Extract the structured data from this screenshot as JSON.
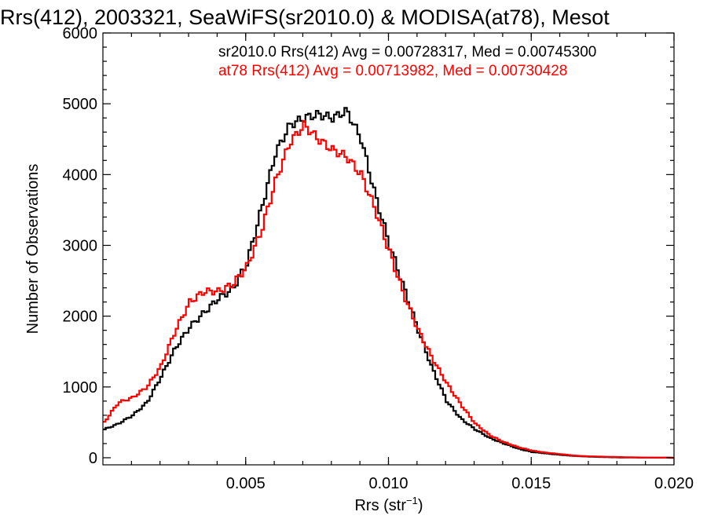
{
  "chart_data": {
    "type": "line",
    "title": "Rrs(412), 2003321, SeaWiFS(sr2010.0) & MODISA(at78), Mesot",
    "xlabel": "Rrs (str",
    "xlabel_sup": "−1",
    "xlabel_close": ")",
    "ylabel": "Number of Observations",
    "xlim": [
      0.0,
      0.02
    ],
    "ylim": [
      -100,
      6000
    ],
    "xticks": [
      0.005,
      0.01,
      0.015,
      0.02
    ],
    "xtick_labels": [
      "0.005",
      "0.010",
      "0.015",
      "0.020"
    ],
    "yticks": [
      0,
      1000,
      2000,
      3000,
      4000,
      5000,
      6000
    ],
    "ytick_labels": [
      "0",
      "1000",
      "2000",
      "3000",
      "4000",
      "5000",
      "6000"
    ],
    "series": [
      {
        "name": "sr2010.0",
        "legend": "sr2010.0 Rrs(412) Avg = 0.00728317, Med = 0.00745300",
        "color": "#000000",
        "x": [
          0.0,
          0.0005,
          0.001,
          0.0015,
          0.002,
          0.0025,
          0.003,
          0.0035,
          0.004,
          0.0045,
          0.005,
          0.0055,
          0.006,
          0.0065,
          0.007,
          0.0075,
          0.008,
          0.0085,
          0.009,
          0.0095,
          0.01,
          0.0105,
          0.011,
          0.0115,
          0.012,
          0.0125,
          0.013,
          0.0135,
          0.014,
          0.0145,
          0.015,
          0.0155,
          0.016,
          0.0165,
          0.017,
          0.0175,
          0.018,
          0.0185,
          0.019,
          0.0195,
          0.02
        ],
        "y": [
          400,
          480,
          600,
          780,
          1150,
          1550,
          1850,
          2050,
          2250,
          2380,
          2750,
          3500,
          4300,
          4700,
          4800,
          4850,
          4800,
          4900,
          4500,
          3700,
          3000,
          2400,
          1800,
          1250,
          800,
          550,
          400,
          280,
          200,
          130,
          80,
          60,
          40,
          25,
          15,
          10,
          5,
          3,
          2,
          1,
          0
        ]
      },
      {
        "name": "at78",
        "legend": "at78 Rrs(412) Avg = 0.00713982, Med = 0.00730428",
        "color": "#ff0000",
        "x": [
          0.0,
          0.0005,
          0.001,
          0.0015,
          0.002,
          0.0025,
          0.003,
          0.0035,
          0.004,
          0.0045,
          0.005,
          0.0055,
          0.006,
          0.0065,
          0.007,
          0.0075,
          0.008,
          0.0085,
          0.009,
          0.0095,
          0.01,
          0.0105,
          0.011,
          0.0115,
          0.012,
          0.0125,
          0.013,
          0.0135,
          0.014,
          0.0145,
          0.015,
          0.0155,
          0.016,
          0.0165,
          0.017,
          0.0175,
          0.018,
          0.0185,
          0.019,
          0.0195,
          0.02
        ],
        "y": [
          500,
          780,
          850,
          1000,
          1300,
          1800,
          2200,
          2350,
          2350,
          2450,
          2700,
          3200,
          3900,
          4450,
          4700,
          4500,
          4350,
          4250,
          4000,
          3500,
          2900,
          2300,
          1800,
          1400,
          1050,
          750,
          480,
          320,
          220,
          150,
          100,
          70,
          50,
          30,
          20,
          15,
          10,
          6,
          3,
          2,
          0
        ]
      }
    ],
    "grid": false,
    "legend_position": "top"
  }
}
